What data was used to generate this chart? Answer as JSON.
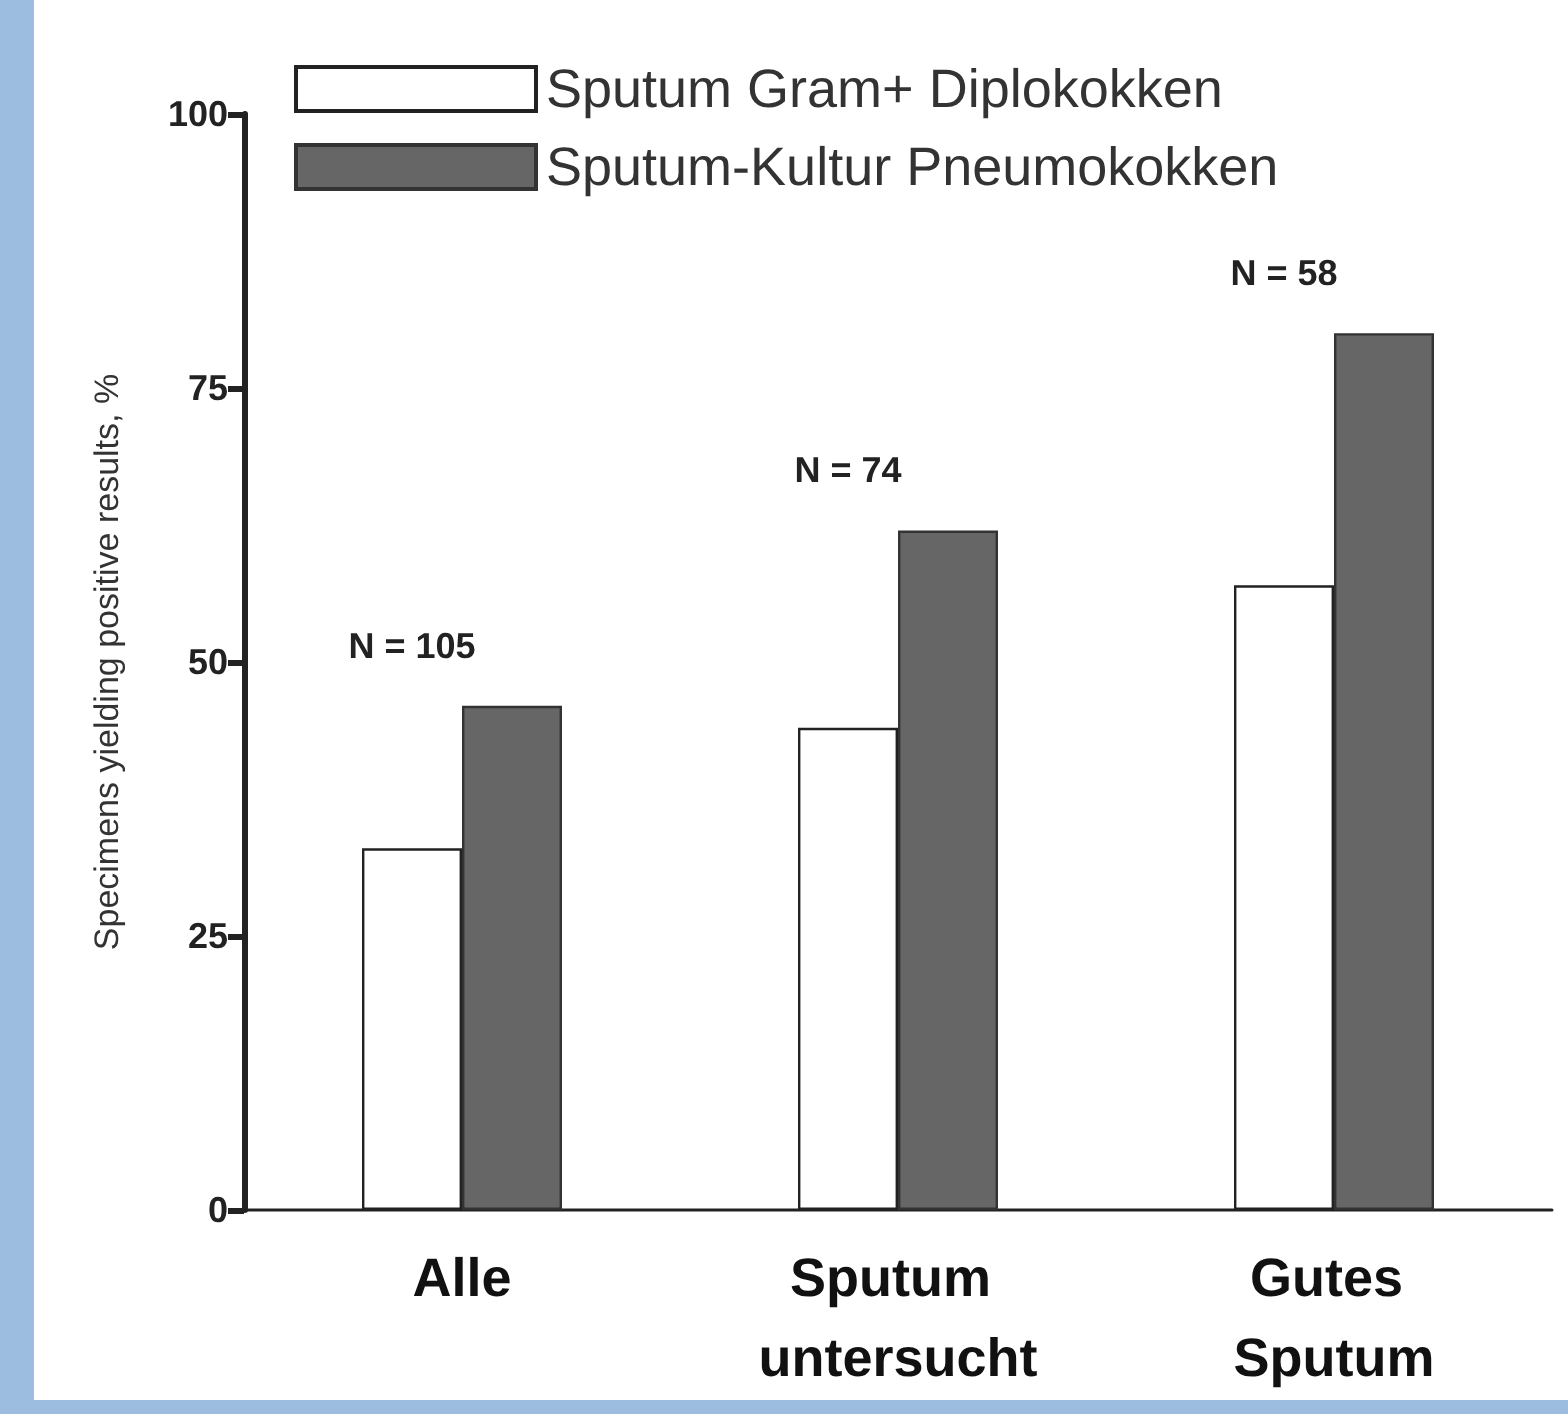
{
  "chart_data": {
    "type": "bar",
    "ylabel": "Specimens yielding positive results, %",
    "categories": [
      "Alle",
      "Sputum untersucht",
      "Gutes Sputum"
    ],
    "series": [
      {
        "name": "Sputum Gram+ Diplokokken",
        "color": "#ffffff",
        "values": [
          33,
          44,
          57
        ]
      },
      {
        "name": "Sputum-Kultur Pneumokokken",
        "color": "#666666",
        "values": [
          46,
          62,
          80
        ]
      }
    ],
    "ylim": [
      0,
      100
    ],
    "yticks": [
      0,
      25,
      50,
      75,
      100
    ],
    "annotations": [
      "N = 105",
      "N = 74",
      "N = 58"
    ],
    "grid": false,
    "legend": "top"
  }
}
